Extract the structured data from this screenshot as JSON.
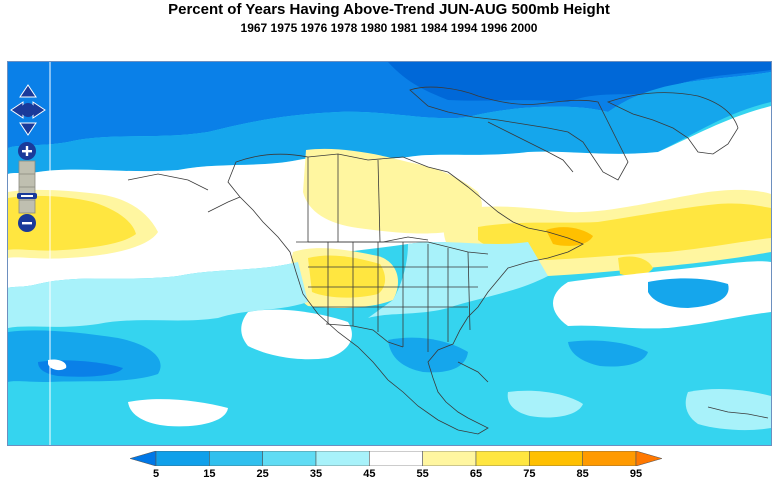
{
  "header": {
    "title": "Percent of Years Having Above-Trend JUN-AUG 500mb Height",
    "subtitle": "1967 1975 1976 1978 1980 1981 1984 1994 1996 2000"
  },
  "map": {
    "controls": {
      "pan": [
        "pan-up",
        "pan-left",
        "pan-right",
        "pan-down"
      ],
      "zoom": [
        "zoom-in",
        "zoom-slider",
        "zoom-out"
      ]
    }
  },
  "legend": {
    "ticks": [
      "5",
      "15",
      "25",
      "35",
      "45",
      "55",
      "65",
      "75",
      "85",
      "95"
    ],
    "colors": [
      "#0077e6",
      "#10a0ea",
      "#30c0ee",
      "#60dcf4",
      "#a8f2fa",
      "#ffffff",
      "#fff6a0",
      "#ffe640",
      "#ffc000",
      "#ff9a00",
      "#ff7800"
    ]
  }
}
